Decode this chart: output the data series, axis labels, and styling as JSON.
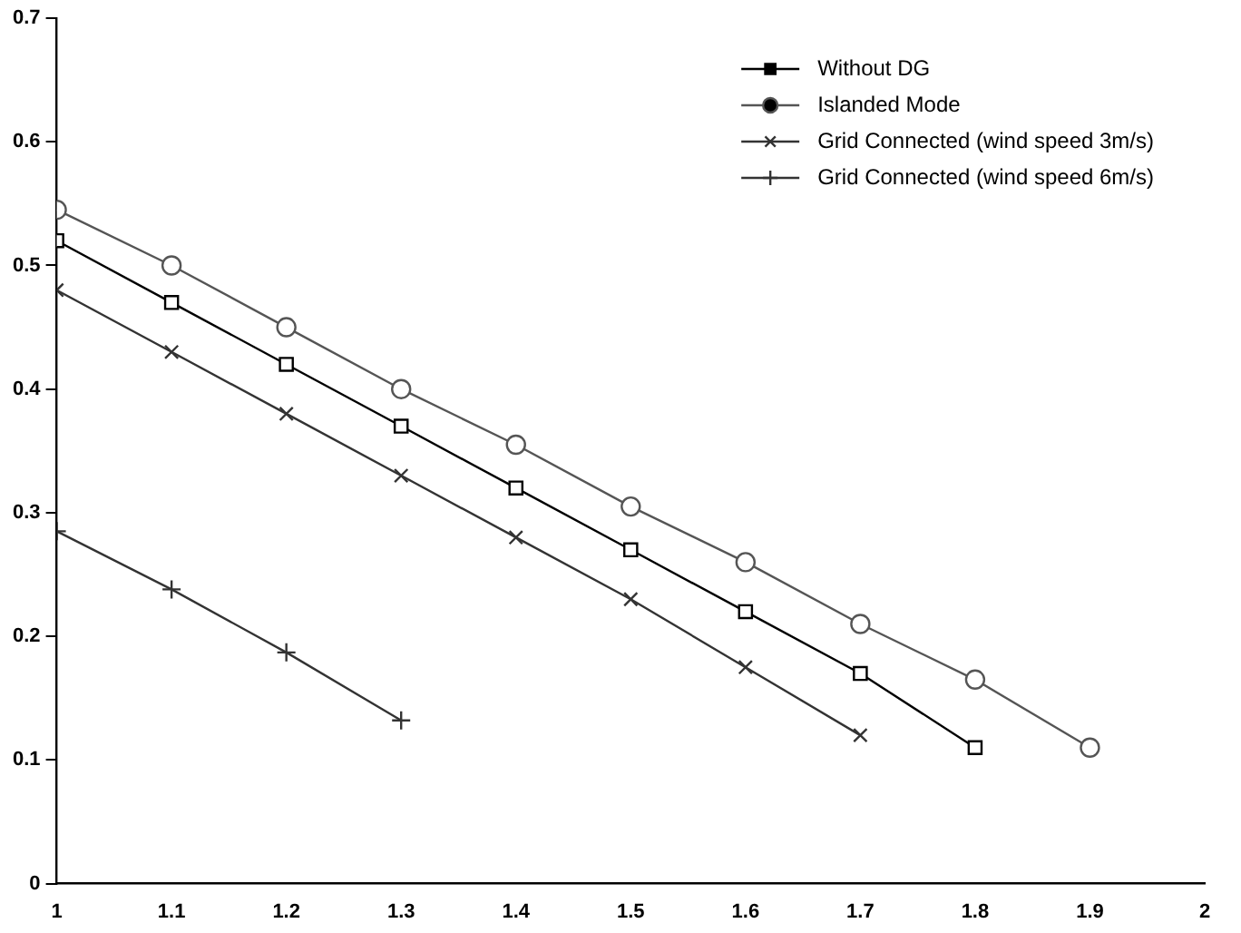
{
  "chart_data": {
    "type": "line",
    "x": [
      1,
      1.1,
      1.2,
      1.3,
      1.4,
      1.5,
      1.6,
      1.7,
      1.8,
      1.9
    ],
    "series": [
      {
        "name": "Without DG",
        "color": "#000000",
        "marker": "square",
        "values": [
          0.52,
          0.47,
          0.42,
          0.37,
          0.32,
          0.27,
          0.22,
          0.17,
          0.11,
          null
        ]
      },
      {
        "name": "Islanded Mode",
        "color": "#555555",
        "marker": "circle",
        "values": [
          0.545,
          0.5,
          0.45,
          0.4,
          0.355,
          0.305,
          0.26,
          0.21,
          0.165,
          0.11
        ]
      },
      {
        "name": "Grid Connected (wind speed 3m/s)",
        "color": "#333333",
        "marker": "cross",
        "values": [
          0.48,
          0.43,
          0.38,
          0.33,
          0.28,
          0.23,
          0.175,
          0.12,
          null,
          null
        ]
      },
      {
        "name": "Grid Connected (wind speed 6m/s)",
        "color": "#333333",
        "marker": "plus",
        "values": [
          0.285,
          0.238,
          0.187,
          0.132,
          null,
          null,
          null,
          null,
          null,
          null
        ]
      }
    ],
    "xlim": [
      1,
      2
    ],
    "xticks": [
      1,
      1.1,
      1.2,
      1.3,
      1.4,
      1.5,
      1.6,
      1.7,
      1.8,
      1.9,
      2
    ],
    "ylim": [
      0,
      0.7
    ],
    "yticks": [
      0,
      0.1,
      0.2,
      0.3,
      0.4,
      0.5,
      0.6,
      0.7
    ],
    "grid": false,
    "legend": "top right"
  }
}
